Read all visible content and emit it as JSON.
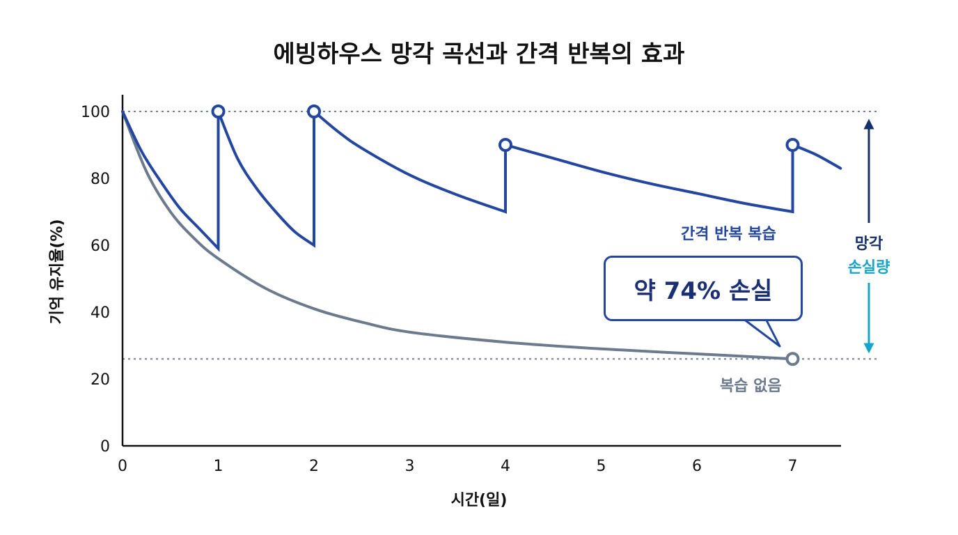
{
  "chart_data": {
    "type": "line",
    "title": "에빙하우스 망각 곡선과 간격 반복의 효과",
    "xlabel": "시간(일)",
    "ylabel": "기억 유지율(%)",
    "xlim": [
      0,
      7.5
    ],
    "ylim": [
      0,
      105
    ],
    "xticks": [
      0,
      1,
      2,
      3,
      4,
      5,
      6,
      7
    ],
    "yticks": [
      0,
      20,
      40,
      60,
      80,
      100
    ],
    "reference_lines": [
      100,
      26
    ],
    "series": [
      {
        "name": "간격 반복 복습",
        "color": "#2346a0",
        "segments": [
          {
            "x": [
              0,
              0.2,
              0.4,
              0.6,
              0.8,
              1.0
            ],
            "y": [
              100,
              88,
              79,
              71,
              65,
              59
            ]
          },
          {
            "x": [
              1.0,
              1.2,
              1.4,
              1.6,
              1.8,
              2.0
            ],
            "y": [
              100,
              86,
              77,
              70,
              64,
              60
            ]
          },
          {
            "x": [
              2.0,
              2.25,
              2.5,
              3.0,
              3.5,
              4.0
            ],
            "y": [
              100,
              94,
              89,
              81,
              75,
              70
            ]
          },
          {
            "x": [
              4.0,
              4.5,
              5.0,
              5.5,
              6.0,
              6.5,
              7.0
            ],
            "y": [
              90,
              86,
              82,
              78.5,
              75.5,
              72.5,
              70
            ]
          },
          {
            "x": [
              7.0,
              7.25,
              7.5
            ],
            "y": [
              90,
              87,
              83
            ]
          }
        ],
        "review_points": [
          {
            "x": 1,
            "y": 100
          },
          {
            "x": 2,
            "y": 100
          },
          {
            "x": 4,
            "y": 90
          },
          {
            "x": 7,
            "y": 90
          }
        ]
      },
      {
        "name": "복습 없음",
        "color": "#6b7a8d",
        "x": [
          0,
          0.25,
          0.5,
          0.75,
          1,
          1.5,
          2,
          2.5,
          3,
          4,
          5,
          6,
          7
        ],
        "y": [
          100,
          82,
          70,
          62,
          56,
          47,
          41,
          37,
          34,
          31,
          29,
          27.5,
          26
        ],
        "end_point": {
          "x": 7,
          "y": 26
        }
      }
    ],
    "annotation": "약 74% 손실",
    "loss_label": [
      "망각",
      "손실량"
    ],
    "colors": {
      "accent": "#2346a0",
      "gray": "#6b7a8d",
      "loss_top": "#16306b",
      "loss_bottom": "#16a5c9"
    }
  }
}
